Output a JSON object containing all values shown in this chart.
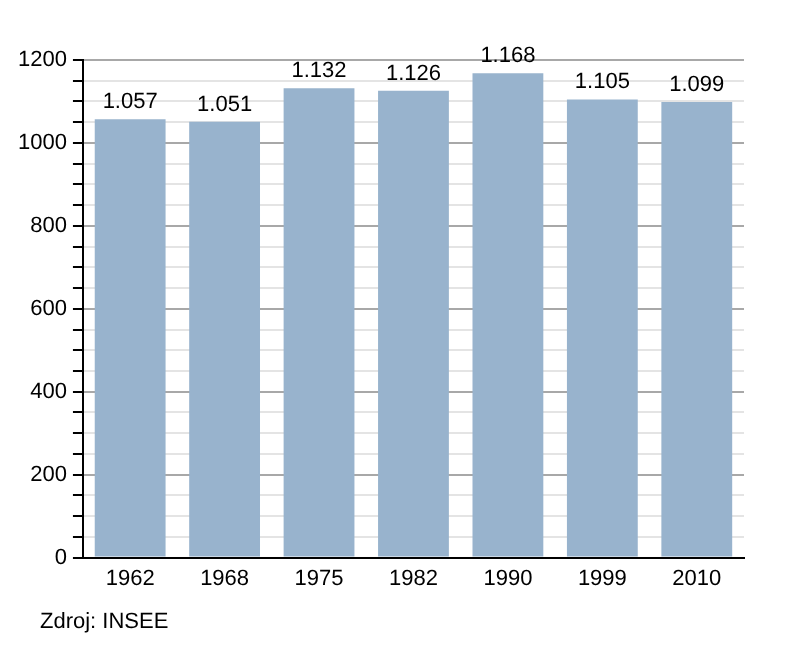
{
  "chart_data": {
    "type": "bar",
    "categories": [
      "1962",
      "1968",
      "1975",
      "1982",
      "1990",
      "1999",
      "2010"
    ],
    "values": [
      1057,
      1051,
      1132,
      1126,
      1168,
      1105,
      1099
    ],
    "value_labels": [
      "1.057",
      "1.051",
      "1.132",
      "1.126",
      "1.168",
      "1.105",
      "1.099"
    ],
    "color": "#98b3cd",
    "ylim": [
      0,
      1200
    ],
    "yticks": [
      0,
      {
        "value": 50,
        "label": null
      },
      {
        "value": 100,
        "label": null
      },
      {
        "value": 150,
        "label": null
      },
      200,
      {
        "value": 250,
        "label": null
      },
      {
        "value": 300,
        "label": null
      },
      {
        "value": 350,
        "label": null
      },
      400,
      {
        "value": 450,
        "label": null
      },
      {
        "value": 500,
        "label": null
      },
      {
        "value": 550,
        "label": null
      },
      600,
      {
        "value": 650,
        "label": null
      },
      {
        "value": 700,
        "label": null
      },
      {
        "value": 750,
        "label": null
      },
      800,
      {
        "value": 850,
        "label": null
      },
      {
        "value": 900,
        "label": null
      },
      {
        "value": 950,
        "label": null
      },
      1000,
      {
        "value": 1050,
        "label": null
      },
      {
        "value": 1100,
        "label": null
      },
      {
        "value": 1150,
        "label": null
      },
      1200
    ],
    "grid": "y",
    "legend": false,
    "annotations": [
      "Zdroj: INSEE"
    ]
  }
}
